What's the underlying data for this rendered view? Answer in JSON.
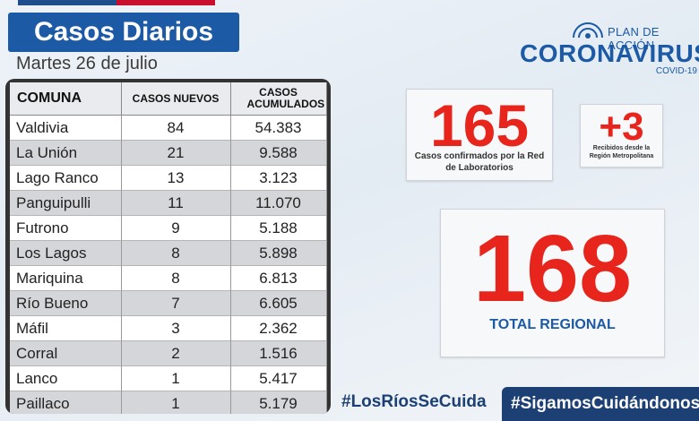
{
  "header": {
    "title": "Casos Diarios",
    "date": "Martes 26 de julio"
  },
  "logo": {
    "line1": "PLAN DE ACCIÓN",
    "line2": "CORONAVIRUS",
    "line3": "COVID-19"
  },
  "table": {
    "columns": [
      "COMUNA",
      "CASOS NUEVOS",
      "CASOS ACUMULADOS"
    ],
    "rows": [
      {
        "comuna": "Valdivia",
        "nuevos": "84",
        "acumulados": "54.383"
      },
      {
        "comuna": "La Unión",
        "nuevos": "21",
        "acumulados": "9.588"
      },
      {
        "comuna": "Lago Ranco",
        "nuevos": "13",
        "acumulados": "3.123"
      },
      {
        "comuna": "Panguipulli",
        "nuevos": "11",
        "acumulados": "11.070"
      },
      {
        "comuna": "Futrono",
        "nuevos": "9",
        "acumulados": "5.188"
      },
      {
        "comuna": "Los Lagos",
        "nuevos": "8",
        "acumulados": "5.898"
      },
      {
        "comuna": "Mariquina",
        "nuevos": "8",
        "acumulados": "6.813"
      },
      {
        "comuna": "Río Bueno",
        "nuevos": "7",
        "acumulados": "6.605"
      },
      {
        "comuna": "Máfil",
        "nuevos": "3",
        "acumulados": "2.362"
      },
      {
        "comuna": "Corral",
        "nuevos": "2",
        "acumulados": "1.516"
      },
      {
        "comuna": "Lanco",
        "nuevos": "1",
        "acumulados": "5.417"
      },
      {
        "comuna": "Paillaco",
        "nuevos": "1",
        "acumulados": "5.179"
      }
    ]
  },
  "stats": {
    "lab_value": "165",
    "lab_caption": "Casos confirmados por la Red de Laboratorios",
    "rm_value": "+3",
    "rm_caption": "Recibidos desde la Región Metropolitana",
    "total_value": "168",
    "total_caption": "TOTAL REGIONAL"
  },
  "footer": {
    "hashtag1": "#LosRíosSeCuida",
    "hashtag2": "#SigamosCuidándonos"
  },
  "colors": {
    "brand_blue": "#1c5aa6",
    "alert_red": "#e8251c",
    "dark_navy": "#1c3f74"
  }
}
